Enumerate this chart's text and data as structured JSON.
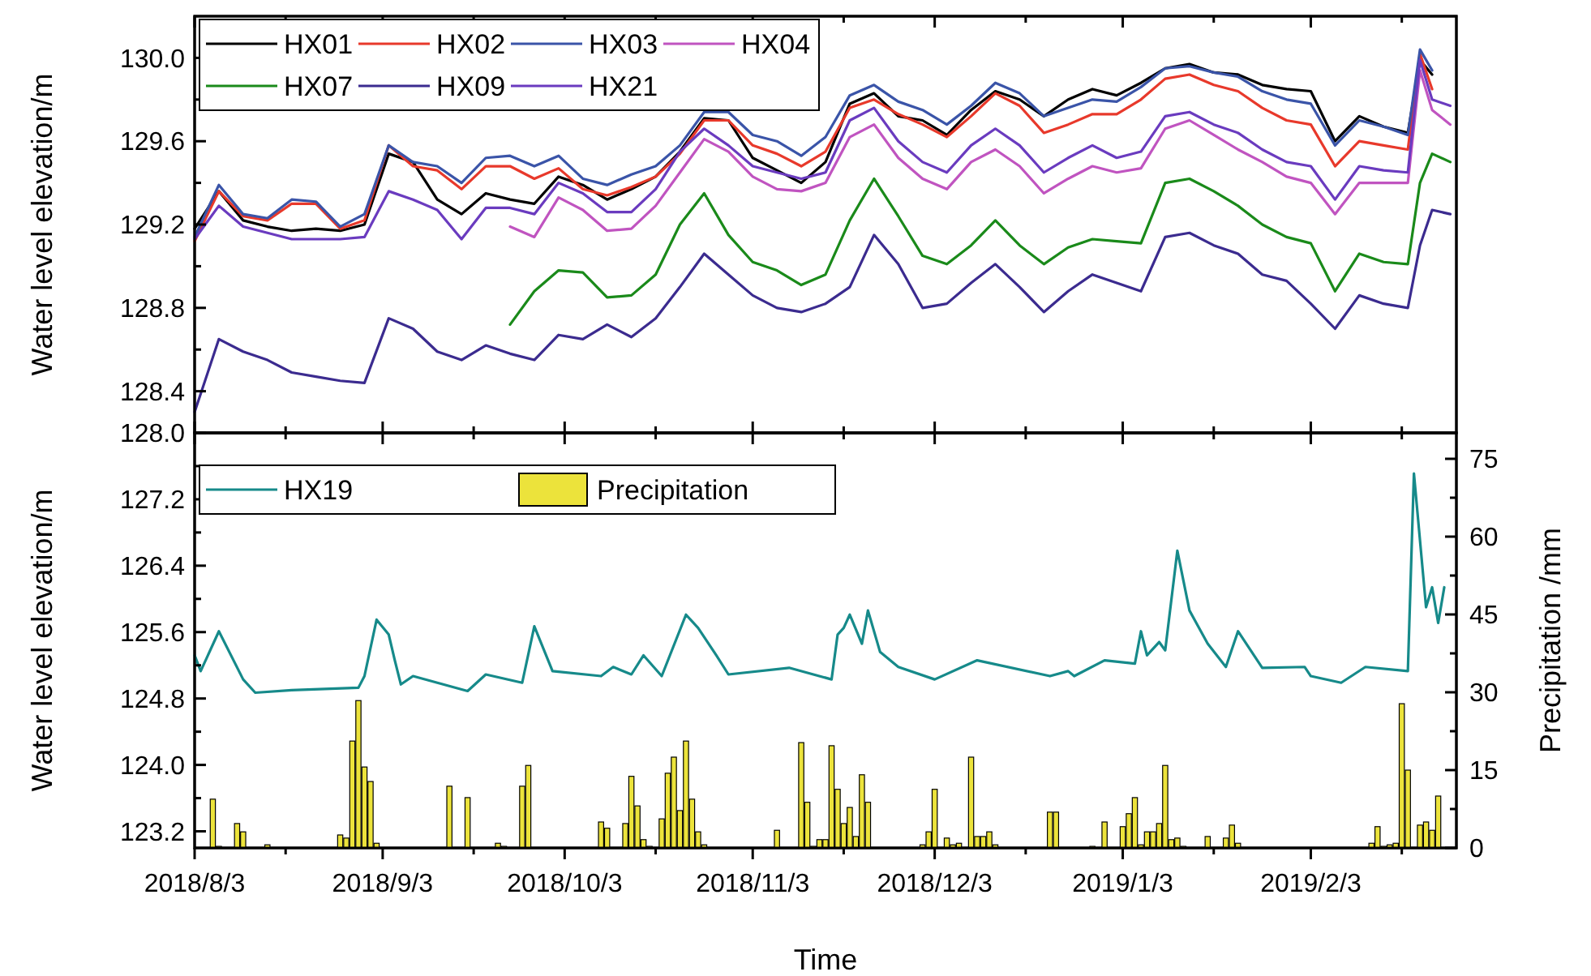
{
  "chart_data": [
    {
      "type": "line",
      "ylabel": "Water level elevation/m",
      "legend": "top left",
      "tick_labels": "y",
      "xlim": [
        "2018-08-03",
        "2019-02-27"
      ],
      "xticks": [
        {
          "value": "2018-08-03",
          "label": null
        },
        {
          "value": "2018-08-18",
          "label": null
        },
        {
          "value": "2018-09-03",
          "label": null
        },
        {
          "value": "2018-09-18",
          "label": null
        },
        {
          "value": "2018-10-03",
          "label": null
        },
        {
          "value": "2018-10-18",
          "label": null
        },
        {
          "value": "2018-11-03",
          "label": null
        },
        {
          "value": "2018-11-18",
          "label": null
        },
        {
          "value": "2018-12-03",
          "label": null
        },
        {
          "value": "2018-12-18",
          "label": null
        },
        {
          "value": "2019-01-03",
          "label": null
        },
        {
          "value": "2019-01-18",
          "label": null
        },
        {
          "value": "2019-02-03",
          "label": null
        },
        {
          "value": "2019-02-18",
          "label": null
        }
      ],
      "ylim": [
        128.2,
        130.2
      ],
      "yticks": [
        128.4,
        {
          "value": 128.6,
          "label": null
        },
        128.8,
        {
          "value": 129.0,
          "label": null
        },
        129.2,
        {
          "value": 129.4,
          "label": null
        },
        129.6,
        {
          "value": 129.8,
          "label": null
        },
        {
          "value": 130.0,
          "label": "130.0"
        }
      ],
      "x": [
        "2018-08-03",
        "2018-08-07",
        "2018-08-11",
        "2018-08-15",
        "2018-08-19",
        "2018-08-23",
        "2018-08-27",
        "2018-08-31",
        "2018-09-04",
        "2018-09-08",
        "2018-09-12",
        "2018-09-16",
        "2018-09-20",
        "2018-09-24",
        "2018-09-28",
        "2018-10-02",
        "2018-10-06",
        "2018-10-10",
        "2018-10-14",
        "2018-10-18",
        "2018-10-22",
        "2018-10-26",
        "2018-10-30",
        "2018-11-03",
        "2018-11-07",
        "2018-11-11",
        "2018-11-15",
        "2018-11-19",
        "2018-11-23",
        "2018-11-27",
        "2018-12-01",
        "2018-12-05",
        "2018-12-09",
        "2018-12-13",
        "2018-12-17",
        "2018-12-21",
        "2018-12-25",
        "2018-12-29",
        "2019-01-02",
        "2019-01-06",
        "2019-01-10",
        "2019-01-14",
        "2019-01-18",
        "2019-01-22",
        "2019-01-26",
        "2019-01-30",
        "2019-02-03",
        "2019-02-07",
        "2019-02-11",
        "2019-02-15",
        "2019-02-19",
        "2019-02-21",
        "2019-02-23",
        "2019-02-26"
      ],
      "series": [
        {
          "name": "HX01",
          "color": "#000000",
          "values": [
            129.18,
            129.36,
            129.22,
            129.19,
            129.17,
            129.18,
            129.17,
            129.2,
            129.54,
            129.5,
            129.32,
            129.25,
            129.35,
            129.32,
            129.3,
            129.43,
            129.39,
            129.32,
            129.37,
            129.43,
            129.55,
            129.71,
            129.7,
            129.52,
            129.46,
            129.4,
            129.5,
            129.78,
            129.83,
            129.72,
            129.7,
            129.63,
            129.75,
            129.84,
            129.8,
            129.72,
            129.8,
            129.85,
            129.82,
            129.88,
            129.95,
            129.97,
            129.93,
            129.92,
            129.87,
            129.85,
            129.84,
            129.6,
            129.72,
            129.67,
            129.64,
            129.99,
            129.92,
            null
          ]
        },
        {
          "name": "HX02",
          "color": "#e8392b",
          "values": [
            129.12,
            129.36,
            129.24,
            129.22,
            129.3,
            129.3,
            129.18,
            129.22,
            129.58,
            129.48,
            129.46,
            129.37,
            129.48,
            129.48,
            129.42,
            129.47,
            129.37,
            129.34,
            129.38,
            129.43,
            129.54,
            129.7,
            129.7,
            129.58,
            129.54,
            129.48,
            129.55,
            129.76,
            129.8,
            129.73,
            129.68,
            129.62,
            129.72,
            129.83,
            129.77,
            129.64,
            129.68,
            129.73,
            129.73,
            129.8,
            129.9,
            129.92,
            129.87,
            129.84,
            129.76,
            129.7,
            129.68,
            129.48,
            129.6,
            129.58,
            129.56,
            130.02,
            129.85,
            null
          ]
        },
        {
          "name": "HX03",
          "color": "#3a54a8",
          "values": [
            129.14,
            129.39,
            129.25,
            129.23,
            129.32,
            129.31,
            129.19,
            129.25,
            129.58,
            129.5,
            129.48,
            129.4,
            129.52,
            129.53,
            129.48,
            129.53,
            129.42,
            129.39,
            129.44,
            129.48,
            129.58,
            129.74,
            129.74,
            129.63,
            129.6,
            129.53,
            129.62,
            129.82,
            129.87,
            129.79,
            129.75,
            129.68,
            129.77,
            129.88,
            129.83,
            129.72,
            129.76,
            129.8,
            129.79,
            129.86,
            129.95,
            129.96,
            129.93,
            129.91,
            129.84,
            129.8,
            129.78,
            129.58,
            129.7,
            129.67,
            129.63,
            130.04,
            129.94,
            null
          ]
        },
        {
          "name": "HX04",
          "color": "#c054c0",
          "values": [
            null,
            null,
            null,
            null,
            null,
            null,
            null,
            null,
            null,
            null,
            null,
            null,
            null,
            129.19,
            129.14,
            129.33,
            129.27,
            129.17,
            129.18,
            129.29,
            129.45,
            129.61,
            129.55,
            129.43,
            129.37,
            129.36,
            129.4,
            129.62,
            129.68,
            129.52,
            129.42,
            129.37,
            129.5,
            129.56,
            129.48,
            129.35,
            129.42,
            129.48,
            129.45,
            129.47,
            129.66,
            129.7,
            129.63,
            129.56,
            129.5,
            129.43,
            129.4,
            129.25,
            129.4,
            129.4,
            129.4,
            129.94,
            129.75,
            129.68
          ]
        },
        {
          "name": "HX07",
          "color": "#1a8a1a",
          "values": [
            null,
            null,
            null,
            null,
            null,
            null,
            null,
            null,
            null,
            null,
            null,
            null,
            null,
            128.72,
            128.88,
            128.98,
            128.97,
            128.85,
            128.86,
            128.96,
            129.2,
            129.35,
            129.15,
            129.02,
            128.98,
            128.91,
            128.96,
            129.22,
            129.42,
            129.24,
            129.05,
            129.01,
            129.1,
            129.22,
            129.1,
            129.01,
            129.09,
            129.13,
            129.12,
            129.11,
            129.4,
            129.42,
            129.36,
            129.29,
            129.2,
            129.14,
            129.11,
            128.88,
            129.06,
            129.02,
            129.01,
            129.4,
            129.54,
            129.5
          ]
        },
        {
          "name": "HX09",
          "color": "#3b2b8f",
          "values": [
            128.3,
            128.65,
            128.59,
            128.55,
            128.49,
            128.47,
            128.45,
            128.44,
            128.75,
            128.7,
            128.59,
            128.55,
            128.62,
            128.58,
            128.55,
            128.67,
            128.65,
            128.72,
            128.66,
            128.75,
            128.9,
            129.06,
            128.96,
            128.86,
            128.8,
            128.78,
            128.82,
            128.9,
            129.15,
            129.01,
            128.8,
            128.82,
            128.92,
            129.01,
            128.9,
            128.78,
            128.88,
            128.96,
            128.92,
            128.88,
            129.14,
            129.16,
            129.1,
            129.06,
            128.96,
            128.93,
            128.82,
            128.7,
            128.86,
            128.82,
            128.8,
            129.1,
            129.27,
            129.25
          ]
        },
        {
          "name": "HX21",
          "color": "#6a3bbf",
          "values": [
            129.13,
            129.29,
            129.19,
            129.16,
            129.13,
            129.13,
            129.13,
            129.14,
            129.36,
            129.32,
            129.27,
            129.13,
            129.28,
            129.28,
            129.25,
            129.4,
            129.35,
            129.26,
            129.26,
            129.37,
            129.55,
            129.66,
            129.58,
            129.48,
            129.45,
            129.42,
            129.45,
            129.7,
            129.76,
            129.6,
            129.5,
            129.45,
            129.58,
            129.66,
            129.58,
            129.45,
            129.52,
            129.58,
            129.52,
            129.55,
            129.72,
            129.74,
            129.68,
            129.64,
            129.56,
            129.5,
            129.48,
            129.32,
            129.48,
            129.46,
            129.45,
            129.99,
            129.8,
            129.77
          ]
        }
      ]
    },
    {
      "type": "line",
      "xlabel": "Time",
      "ylabel": "Water level elevation/m",
      "y2label": "Precipitation /mm",
      "legend": "top left",
      "xlim": [
        "2018-08-03",
        "2019-02-27"
      ],
      "xticks": [
        {
          "value": "2018-08-03",
          "label": "2018/8/3"
        },
        {
          "value": "2018-08-18",
          "label": null
        },
        {
          "value": "2018-09-03",
          "label": "2018/9/3"
        },
        {
          "value": "2018-09-18",
          "label": null
        },
        {
          "value": "2018-10-03",
          "label": "2018/10/3"
        },
        {
          "value": "2018-10-18",
          "label": null
        },
        {
          "value": "2018-11-03",
          "label": "2018/11/3"
        },
        {
          "value": "2018-11-18",
          "label": null
        },
        {
          "value": "2018-12-03",
          "label": "2018/12/3"
        },
        {
          "value": "2018-12-18",
          "label": null
        },
        {
          "value": "2019-01-03",
          "label": "2019/1/3"
        },
        {
          "value": "2019-01-18",
          "label": null
        },
        {
          "value": "2019-02-03",
          "label": "2019/2/3"
        },
        {
          "value": "2019-02-18",
          "label": null
        }
      ],
      "ylim": [
        123.0,
        128.0
      ],
      "yticks": [
        123.2,
        {
          "value": 123.6,
          "label": null
        },
        {
          "value": 124.0,
          "label": "124.0"
        },
        {
          "value": 124.4,
          "label": null
        },
        124.8,
        {
          "value": 125.2,
          "label": null
        },
        125.6,
        {
          "value": 126.0,
          "label": null
        },
        126.4,
        {
          "value": 126.8,
          "label": null
        },
        127.2,
        {
          "value": 127.6,
          "label": null
        },
        {
          "value": 128.0,
          "label": "128.0"
        }
      ],
      "y2lim": [
        0,
        80
      ],
      "y2ticks": [
        0,
        {
          "value": 7.5,
          "label": null
        },
        15,
        {
          "value": 22.5,
          "label": null
        },
        30,
        {
          "value": 37.5,
          "label": null
        },
        45,
        {
          "value": 52.5,
          "label": null
        },
        60,
        {
          "value": 67.5,
          "label": null
        },
        75
      ],
      "series": [
        {
          "name": "HX19",
          "color": "#168a8a",
          "x": [
            "2018-08-03",
            "2018-08-04",
            "2018-08-07",
            "2018-08-11",
            "2018-08-13",
            "2018-08-19",
            "2018-08-30",
            "2018-08-31",
            "2018-09-02",
            "2018-09-04",
            "2018-09-05",
            "2018-09-06",
            "2018-09-08",
            "2018-09-17",
            "2018-09-20",
            "2018-09-26",
            "2018-09-28",
            "2018-10-01",
            "2018-10-09",
            "2018-10-11",
            "2018-10-14",
            "2018-10-16",
            "2018-10-19",
            "2018-10-23",
            "2018-10-25",
            "2018-10-28",
            "2018-10-30",
            "2018-11-09",
            "2018-11-16",
            "2018-11-17",
            "2018-11-18",
            "2018-11-19",
            "2018-11-21",
            "2018-11-22",
            "2018-11-24",
            "2018-11-27",
            "2018-12-03",
            "2018-12-10",
            "2018-12-22",
            "2018-12-25",
            "2018-12-26",
            "2018-12-31",
            "2019-01-05",
            "2019-01-06",
            "2019-01-07",
            "2019-01-09",
            "2019-01-10",
            "2019-01-12",
            "2019-01-14",
            "2019-01-17",
            "2019-01-20",
            "2019-01-22",
            "2019-01-26",
            "2019-02-02",
            "2019-02-03",
            "2019-02-08",
            "2019-02-12",
            "2019-02-19",
            "2019-02-20",
            "2019-02-22",
            "2019-02-23",
            "2019-02-24",
            "2019-02-25"
          ],
          "values": [
            125.32,
            125.13,
            125.61,
            125.03,
            124.87,
            124.9,
            124.93,
            125.07,
            125.75,
            125.57,
            125.26,
            124.97,
            125.07,
            124.89,
            125.09,
            124.99,
            125.67,
            125.13,
            125.07,
            125.18,
            125.09,
            125.32,
            125.07,
            125.81,
            125.65,
            125.32,
            125.09,
            125.17,
            125.03,
            125.57,
            125.65,
            125.81,
            125.46,
            125.86,
            125.36,
            125.18,
            125.03,
            125.26,
            125.07,
            125.13,
            125.07,
            125.26,
            125.22,
            125.61,
            125.32,
            125.48,
            125.38,
            126.58,
            125.86,
            125.46,
            125.18,
            125.61,
            125.17,
            125.18,
            125.07,
            124.99,
            125.18,
            125.13,
            127.51,
            125.9,
            126.14,
            125.71,
            126.14
          ]
        },
        {
          "name": "Precipitation",
          "type": "bar",
          "axis": "y2",
          "color": "#ece33b",
          "x": [
            "2018-08-06",
            "2018-08-07",
            "2018-08-10",
            "2018-08-11",
            "2018-08-15",
            "2018-08-27",
            "2018-08-28",
            "2018-08-29",
            "2018-08-30",
            "2018-08-31",
            "2018-09-01",
            "2018-09-02",
            "2018-09-14",
            "2018-09-17",
            "2018-09-22",
            "2018-09-23",
            "2018-09-26",
            "2018-09-27",
            "2018-10-09",
            "2018-10-10",
            "2018-10-13",
            "2018-10-14",
            "2018-10-15",
            "2018-10-16",
            "2018-10-17",
            "2018-10-19",
            "2018-10-20",
            "2018-10-21",
            "2018-10-22",
            "2018-10-23",
            "2018-10-24",
            "2018-10-25",
            "2018-10-26",
            "2018-11-07",
            "2018-11-11",
            "2018-11-12",
            "2018-11-13",
            "2018-11-14",
            "2018-11-15",
            "2018-11-16",
            "2018-11-17",
            "2018-11-18",
            "2018-11-19",
            "2018-11-20",
            "2018-11-21",
            "2018-11-22",
            "2018-12-01",
            "2018-12-02",
            "2018-12-03",
            "2018-12-05",
            "2018-12-06",
            "2018-12-07",
            "2018-12-09",
            "2018-12-10",
            "2018-12-11",
            "2018-12-12",
            "2018-12-13",
            "2018-12-22",
            "2018-12-23",
            "2018-12-29",
            "2018-12-31",
            "2019-01-03",
            "2019-01-04",
            "2019-01-05",
            "2019-01-06",
            "2019-01-07",
            "2019-01-08",
            "2019-01-09",
            "2019-01-10",
            "2019-01-11",
            "2019-01-12",
            "2019-01-13",
            "2019-01-17",
            "2019-01-20",
            "2019-01-21",
            "2019-01-22",
            "2019-02-13",
            "2019-02-14",
            "2019-02-15",
            "2019-02-16",
            "2019-02-17",
            "2019-02-18",
            "2019-02-19",
            "2019-02-21",
            "2019-02-22",
            "2019-02-23",
            "2019-02-24"
          ],
          "values": [
            9.4,
            0.3,
            4.7,
            3.1,
            0.6,
            2.5,
            1.9,
            20.6,
            28.4,
            15.6,
            12.8,
            0.9,
            11.9,
            9.7,
            0.9,
            0.3,
            11.9,
            15.9,
            5.0,
            3.8,
            4.7,
            13.8,
            8.1,
            1.6,
            0.3,
            5.6,
            14.4,
            17.5,
            7.2,
            20.6,
            9.4,
            3.1,
            0.6,
            3.4,
            20.3,
            8.8,
            0.3,
            1.6,
            1.6,
            19.7,
            11.3,
            4.7,
            7.8,
            2.2,
            14.1,
            8.8,
            0.6,
            3.1,
            11.3,
            1.9,
            0.6,
            0.9,
            17.5,
            2.2,
            2.2,
            3.1,
            0.6,
            6.9,
            6.9,
            0.3,
            5.0,
            4.1,
            6.6,
            9.7,
            0.6,
            3.1,
            3.1,
            4.7,
            15.9,
            1.6,
            1.9,
            0.3,
            2.2,
            1.9,
            4.4,
            0.9,
            0.9,
            4.1,
            0.3,
            0.6,
            0.9,
            27.8,
            15.0,
            4.4,
            5.0,
            3.4,
            10.0
          ]
        }
      ]
    }
  ]
}
